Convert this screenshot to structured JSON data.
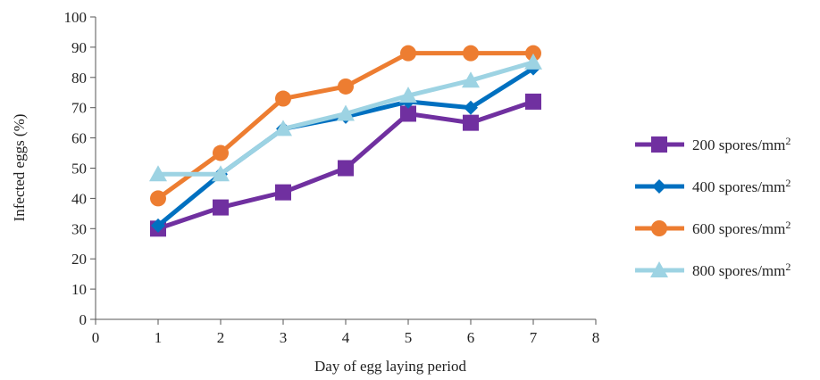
{
  "chart_data": {
    "type": "line",
    "title": "",
    "xlabel": "Day of egg laying period",
    "ylabel": "Infected eggs (%)",
    "xlim": [
      0,
      8
    ],
    "ylim": [
      0,
      100
    ],
    "xticks": [
      0,
      1,
      2,
      3,
      4,
      5,
      6,
      7,
      8
    ],
    "yticks": [
      0,
      10,
      20,
      30,
      40,
      50,
      60,
      70,
      80,
      90,
      100
    ],
    "grid": false,
    "legend_position": "right",
    "x": [
      1,
      2,
      3,
      4,
      5,
      6,
      7
    ],
    "series": [
      {
        "name": "200 spores/mm",
        "unit_superscript": "2",
        "marker": "square",
        "color": "#7030a0",
        "values": [
          30,
          37,
          42,
          50,
          68,
          65,
          72
        ]
      },
      {
        "name": "400 spores/mm",
        "unit_superscript": "2",
        "marker": "diamond",
        "color": "#0070c0",
        "values": [
          31,
          48,
          63,
          67,
          72,
          70,
          83
        ]
      },
      {
        "name": "600 spores/mm",
        "unit_superscript": "2",
        "marker": "circle",
        "color": "#ed7d31",
        "values": [
          40,
          55,
          73,
          77,
          88,
          88,
          88
        ]
      },
      {
        "name": "800 spores/mm",
        "unit_superscript": "2",
        "marker": "triangle",
        "color": "#9dd3e3",
        "values": [
          48,
          48,
          63,
          68,
          74,
          79,
          85
        ]
      }
    ]
  }
}
